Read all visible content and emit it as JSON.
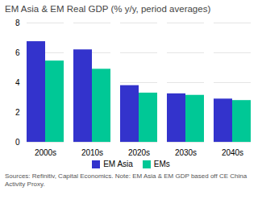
{
  "chart_data": {
    "type": "bar",
    "title": "EM Asia & EM Real GDP (% y/y, period averages)",
    "categories": [
      "2000s",
      "2010s",
      "2020s",
      "2030s",
      "2040s"
    ],
    "series": [
      {
        "name": "EM Asia",
        "color": "#3333cc",
        "values": [
          6.75,
          6.2,
          3.8,
          3.25,
          2.9
        ]
      },
      {
        "name": "EMs",
        "color": "#00c896",
        "values": [
          5.45,
          4.9,
          3.3,
          3.15,
          2.8
        ]
      }
    ],
    "ylim": [
      0,
      8
    ],
    "yticks": [
      0,
      2,
      4,
      6,
      8
    ],
    "grid": true,
    "legend": "bottom",
    "annotations": [
      "Sources: Refinitiv, Capital Economics. Note: EM Asia & EM GDP based off CE China\nActivity Proxy."
    ]
  }
}
